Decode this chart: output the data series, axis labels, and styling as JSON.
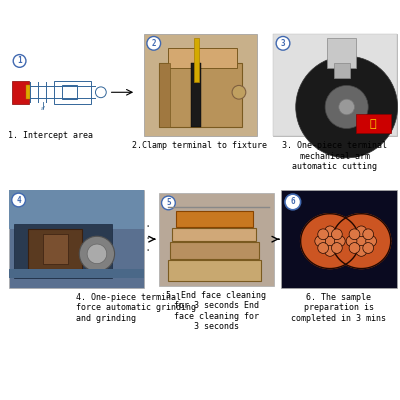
{
  "background_color": "#ffffff",
  "circle_color": "#4169b0",
  "arrow_color": "#000000",
  "text_color": "#000000",
  "font_size": 6.0,
  "steps": [
    {
      "number": "1",
      "label": "1. Intercept area"
    },
    {
      "number": "2",
      "label": "2.Clamp terminal to fixture"
    },
    {
      "number": "3",
      "label": "3. One-piece terminal\nmechanical arm\nautomatic cutting"
    },
    {
      "number": "4",
      "label": "4. One-piece terminal\nforce automatic grinding\nand grinding"
    },
    {
      "number": "5",
      "label": "5. End face cleaning\nfor 3 seconds End\nface cleaning for\n3 seconds"
    },
    {
      "number": "6",
      "label": "6. The sample\npreparation is\ncompleted in 3 mins"
    }
  ]
}
